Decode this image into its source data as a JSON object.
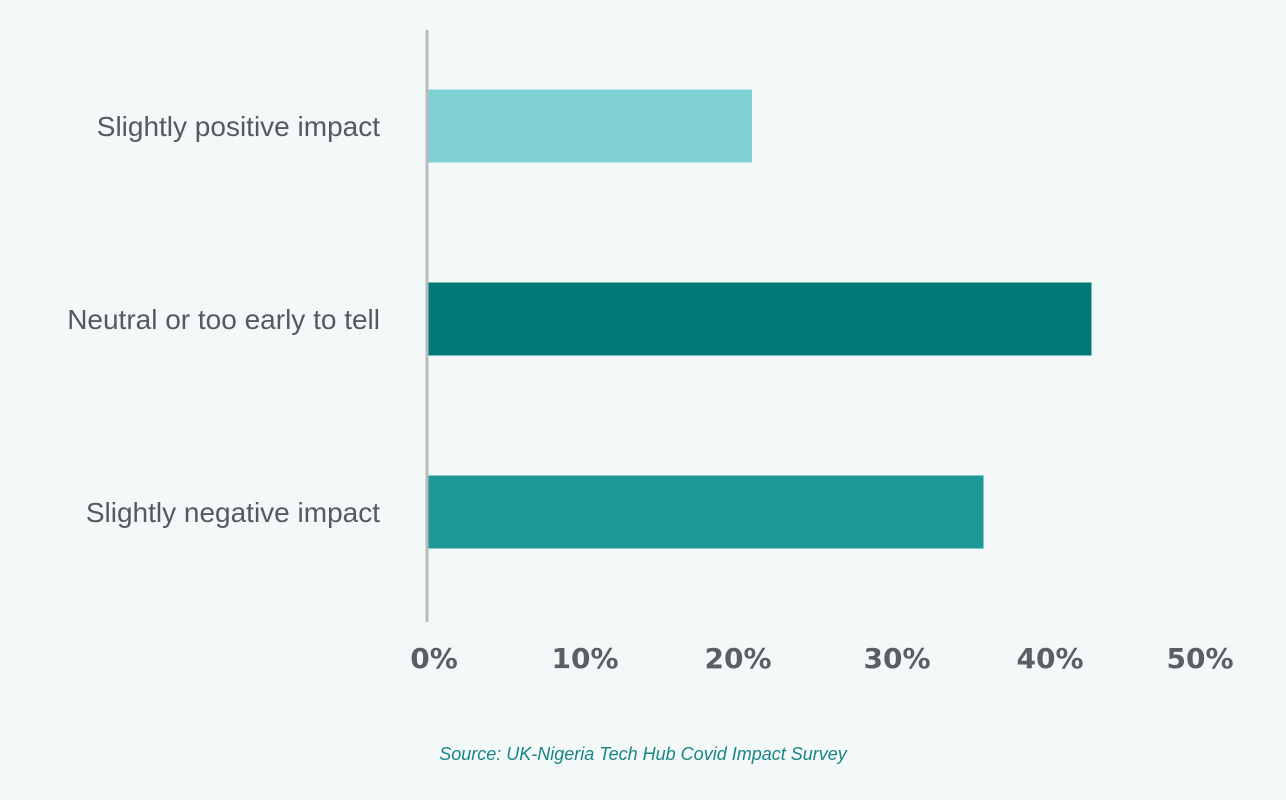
{
  "chart_data": {
    "type": "bar",
    "orientation": "horizontal",
    "categories": [
      "Slightly positive impact",
      "Neutral or too early to tell",
      "Slightly negative impact"
    ],
    "values": [
      21,
      43,
      36
    ],
    "unit": "%",
    "bar_colors": [
      "#80d1d4",
      "#007a76",
      "#1c9898"
    ],
    "xlim": [
      0,
      50
    ],
    "xticks": [
      "0%",
      "10%",
      "20%",
      "30%",
      "40%",
      "50%"
    ],
    "title": "",
    "xlabel": "",
    "ylabel": "",
    "grid": false,
    "legend": "none"
  },
  "source": "Source: UK-Nigeria Tech Hub Covid Impact Survey"
}
